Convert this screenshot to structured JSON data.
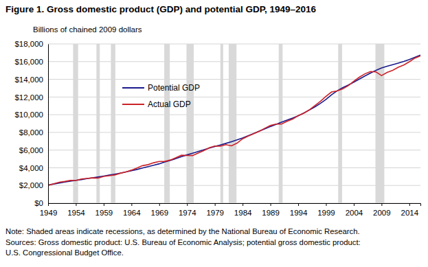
{
  "chart_data": {
    "type": "line",
    "title": "Figure 1. Gross domestic product (GDP) and potential GDP, 1949–2016",
    "y_label": "Billions of chained 2009 dollars",
    "x": [
      1949,
      1950,
      1951,
      1952,
      1953,
      1954,
      1955,
      1956,
      1957,
      1958,
      1959,
      1960,
      1961,
      1962,
      1963,
      1964,
      1965,
      1966,
      1967,
      1968,
      1969,
      1970,
      1971,
      1972,
      1973,
      1974,
      1975,
      1976,
      1977,
      1978,
      1979,
      1980,
      1981,
      1982,
      1983,
      1984,
      1985,
      1986,
      1987,
      1988,
      1989,
      1990,
      1991,
      1992,
      1993,
      1994,
      1995,
      1996,
      1997,
      1998,
      1999,
      2000,
      2001,
      2002,
      2003,
      2004,
      2005,
      2006,
      2007,
      2008,
      2009,
      2010,
      2011,
      2012,
      2013,
      2014,
      2015,
      2016
    ],
    "series": [
      {
        "name": "Potential GDP",
        "color": "#1a1a8c",
        "values": [
          2050,
          2160,
          2280,
          2390,
          2490,
          2580,
          2670,
          2770,
          2870,
          2960,
          3060,
          3170,
          3280,
          3400,
          3530,
          3660,
          3810,
          3970,
          4130,
          4290,
          4450,
          4650,
          4840,
          5040,
          5250,
          5460,
          5650,
          5840,
          6030,
          6220,
          6410,
          6580,
          6760,
          6950,
          7150,
          7370,
          7620,
          7880,
          8140,
          8400,
          8660,
          8900,
          9150,
          9380,
          9620,
          9880,
          10180,
          10520,
          10880,
          11280,
          11720,
          12250,
          12700,
          13050,
          13350,
          13680,
          14020,
          14370,
          14700,
          15020,
          15280,
          15480,
          15650,
          15830,
          16020,
          16230,
          16480,
          16740
        ]
      },
      {
        "name": "Actual GDP",
        "color": "#cc2229",
        "values": [
          2005,
          2184,
          2361,
          2456,
          2571,
          2556,
          2739,
          2797,
          2857,
          2836,
          3032,
          3108,
          3188,
          3383,
          3530,
          3734,
          3976,
          4238,
          4355,
          4569,
          4712,
          4722,
          4878,
          5134,
          5418,
          5390,
          5379,
          5669,
          5931,
          6260,
          6459,
          6444,
          6610,
          6484,
          6785,
          7277,
          7586,
          7852,
          8124,
          8465,
          8777,
          8945,
          8939,
          9257,
          9511,
          9895,
          10164,
          10550,
          11023,
          11513,
          12071,
          12565,
          12684,
          12909,
          13271,
          13774,
          14236,
          14615,
          14877,
          14834,
          14418,
          14784,
          15021,
          15355,
          15612,
          15982,
          16397,
          16660
        ]
      }
    ],
    "recessions": [
      {
        "start": 1953.5,
        "end": 1954.4
      },
      {
        "start": 1957.7,
        "end": 1958.3
      },
      {
        "start": 1960.3,
        "end": 1961.1
      },
      {
        "start": 1969.9,
        "end": 1970.9
      },
      {
        "start": 1973.9,
        "end": 1975.2
      },
      {
        "start": 1980.0,
        "end": 1980.5
      },
      {
        "start": 1981.5,
        "end": 1982.9
      },
      {
        "start": 1990.5,
        "end": 1991.2
      },
      {
        "start": 2001.2,
        "end": 2001.9
      },
      {
        "start": 2007.9,
        "end": 2009.5
      }
    ],
    "xlim": [
      1949,
      2016
    ],
    "xticks": [
      1949,
      1954,
      1959,
      1964,
      1969,
      1974,
      1979,
      1984,
      1989,
      1994,
      1999,
      2004,
      2009,
      2014
    ],
    "ylim": [
      0,
      18000
    ],
    "yticks": [
      {
        "value": 0,
        "label": "$0"
      },
      {
        "value": 2000,
        "label": "$2,000"
      },
      {
        "value": 4000,
        "label": "$4,000"
      },
      {
        "value": 6000,
        "label": "$6,000"
      },
      {
        "value": 8000,
        "label": "$8,000"
      },
      {
        "value": 10000,
        "label": "$10,000"
      },
      {
        "value": 12000,
        "label": "$12,000"
      },
      {
        "value": 14000,
        "label": "$14,000"
      },
      {
        "value": 16000,
        "label": "$16,000"
      },
      {
        "value": 18000,
        "label": "$18,000"
      }
    ],
    "grid": true,
    "legend": "upper left",
    "notes": [
      "Note: Shaded areas indicate recessions, as determined by the National Bureau of Economic Research.",
      "Sources: Gross domestic product: U.S. Bureau of Economic Analysis; potential gross domestic product:",
      "U.S. Congressional Budget Office."
    ]
  }
}
